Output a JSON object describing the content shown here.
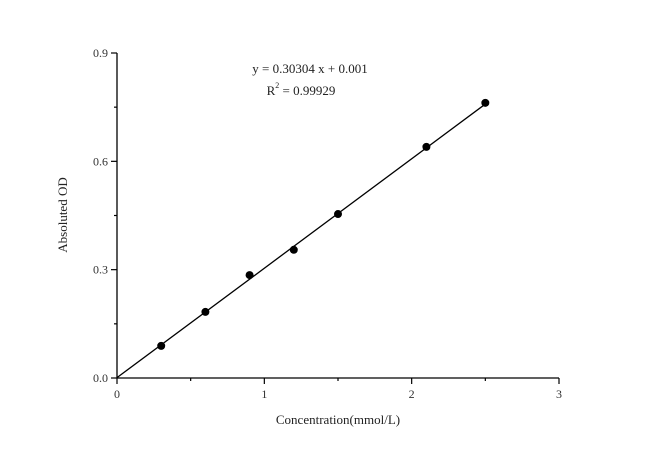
{
  "chart_data": {
    "type": "scatter",
    "title": "",
    "xlabel": "Concentration(mmol/L)",
    "ylabel": "Absoluted OD",
    "xlim": [
      0,
      3
    ],
    "ylim": [
      0,
      0.9
    ],
    "xticks": [
      0,
      1,
      2,
      3
    ],
    "xtick_labels": [
      "0",
      "1",
      "2",
      "3"
    ],
    "xminor_step": 0.5,
    "yticks": [
      0,
      0.3,
      0.6,
      0.9
    ],
    "ytick_labels": [
      "0.0",
      "0.3",
      "0.6",
      "0.9"
    ],
    "yminor_step": 0.15,
    "grid": false,
    "legend": null,
    "series": [
      {
        "name": "data",
        "x": [
          0.3,
          0.6,
          0.9,
          1.2,
          1.5,
          2.1,
          2.5
        ],
        "y": [
          0.089,
          0.183,
          0.285,
          0.355,
          0.454,
          0.64,
          0.762
        ]
      }
    ],
    "fit": {
      "slope": 0.30304,
      "intercept": 0.001,
      "x_range": [
        0,
        2.5
      ],
      "equation": "y = 0.30304 x + 0.001",
      "r2_label": "R",
      "r2_sup": "2",
      "r2_value": " = 0.99929"
    }
  }
}
